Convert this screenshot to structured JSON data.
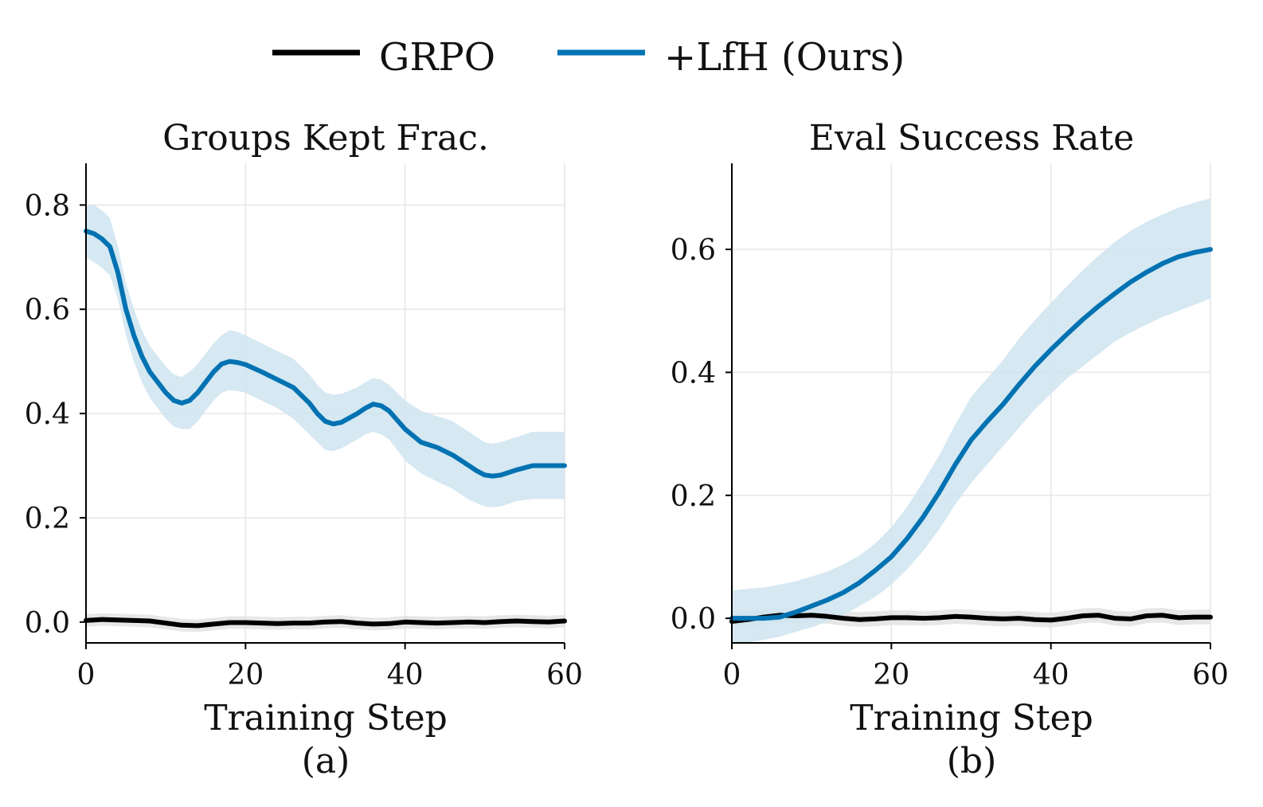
{
  "legend": {
    "items": [
      {
        "label": "GRPO",
        "color": "#000000"
      },
      {
        "label": "+LfH (Ours)",
        "color": "#0072B2"
      }
    ]
  },
  "colors": {
    "grpo": "#000000",
    "lfh": "#0072B2",
    "lfh_band": "#cfe4f0",
    "grpo_band": "#dddddd",
    "grid": "#ebebeb"
  },
  "chart_data": [
    {
      "type": "line",
      "title": "Groups Kept Frac.",
      "xlabel": "Training Step",
      "caption": "(a)",
      "ylabel": "",
      "xlim": [
        0,
        60
      ],
      "ylim": [
        -0.04,
        0.88
      ],
      "xticks": [
        0,
        20,
        40,
        60
      ],
      "xtick_labels": [
        "0",
        "20",
        "40",
        "60"
      ],
      "yticks": [
        0.0,
        0.2,
        0.4,
        0.6,
        0.8
      ],
      "ytick_labels": [
        "0.0",
        "0.2",
        "0.4",
        "0.6",
        "0.8"
      ],
      "grid": true,
      "series": [
        {
          "name": "GRPO",
          "color": "#000000",
          "x": [
            0,
            2,
            4,
            6,
            8,
            10,
            12,
            14,
            16,
            18,
            20,
            22,
            24,
            26,
            28,
            30,
            32,
            34,
            36,
            38,
            40,
            42,
            44,
            46,
            48,
            50,
            52,
            54,
            56,
            58,
            60
          ],
          "y": [
            0.003,
            0.005,
            0.004,
            0.003,
            0.002,
            -0.002,
            -0.006,
            -0.007,
            -0.004,
            -0.001,
            -0.001,
            -0.002,
            -0.003,
            -0.002,
            -0.002,
            0.0,
            0.001,
            -0.002,
            -0.004,
            -0.003,
            0.0,
            -0.001,
            -0.002,
            -0.001,
            0.0,
            -0.001,
            0.001,
            0.002,
            0.001,
            0.0,
            0.002
          ],
          "band": 0.012
        },
        {
          "name": "+LfH (Ours)",
          "color": "#0072B2",
          "x": [
            0,
            1,
            2,
            3,
            4,
            5,
            6,
            7,
            8,
            10,
            11,
            12,
            13,
            14,
            16,
            17,
            18,
            19,
            20,
            22,
            24,
            26,
            28,
            29,
            30,
            31,
            32,
            34,
            35,
            36,
            37,
            38,
            40,
            42,
            44,
            46,
            48,
            49,
            50,
            51,
            52,
            54,
            56,
            58,
            60
          ],
          "y": [
            0.75,
            0.745,
            0.735,
            0.72,
            0.67,
            0.6,
            0.55,
            0.51,
            0.48,
            0.44,
            0.425,
            0.42,
            0.425,
            0.44,
            0.48,
            0.495,
            0.5,
            0.498,
            0.494,
            0.48,
            0.465,
            0.45,
            0.42,
            0.4,
            0.385,
            0.38,
            0.383,
            0.4,
            0.41,
            0.418,
            0.415,
            0.405,
            0.37,
            0.345,
            0.335,
            0.32,
            0.3,
            0.29,
            0.282,
            0.28,
            0.282,
            0.292,
            0.3,
            0.3,
            0.3
          ],
          "band_lo": [
            0.7,
            0.69,
            0.68,
            0.665,
            0.62,
            0.55,
            0.5,
            0.46,
            0.43,
            0.39,
            0.375,
            0.37,
            0.37,
            0.385,
            0.425,
            0.44,
            0.445,
            0.443,
            0.44,
            0.425,
            0.41,
            0.39,
            0.36,
            0.345,
            0.33,
            0.328,
            0.333,
            0.35,
            0.36,
            0.365,
            0.36,
            0.35,
            0.31,
            0.285,
            0.27,
            0.255,
            0.235,
            0.228,
            0.222,
            0.22,
            0.222,
            0.232,
            0.236,
            0.236,
            0.236
          ],
          "band_hi": [
            0.8,
            0.8,
            0.79,
            0.775,
            0.72,
            0.65,
            0.6,
            0.56,
            0.53,
            0.49,
            0.475,
            0.47,
            0.48,
            0.495,
            0.535,
            0.55,
            0.56,
            0.557,
            0.55,
            0.535,
            0.52,
            0.505,
            0.475,
            0.455,
            0.44,
            0.436,
            0.438,
            0.45,
            0.46,
            0.468,
            0.465,
            0.455,
            0.425,
            0.405,
            0.395,
            0.385,
            0.365,
            0.355,
            0.345,
            0.342,
            0.345,
            0.355,
            0.365,
            0.365,
            0.365
          ]
        }
      ]
    },
    {
      "type": "line",
      "title": "Eval Success Rate",
      "xlabel": "Training Step",
      "caption": "(b)",
      "ylabel": "",
      "xlim": [
        0,
        60
      ],
      "ylim": [
        -0.04,
        0.74
      ],
      "xticks": [
        0,
        20,
        40,
        60
      ],
      "xtick_labels": [
        "0",
        "20",
        "40",
        "60"
      ],
      "yticks": [
        0.0,
        0.2,
        0.4,
        0.6
      ],
      "ytick_labels": [
        "0.0",
        "0.2",
        "0.4",
        "0.6"
      ],
      "grid": true,
      "series": [
        {
          "name": "GRPO",
          "color": "#000000",
          "x": [
            0,
            2,
            4,
            6,
            8,
            10,
            12,
            14,
            16,
            18,
            20,
            22,
            24,
            26,
            28,
            30,
            32,
            34,
            36,
            38,
            40,
            42,
            44,
            46,
            48,
            50,
            52,
            54,
            56,
            58,
            60
          ],
          "y": [
            -0.005,
            -0.002,
            0.002,
            0.005,
            0.004,
            0.005,
            0.003,
            0.0,
            -0.002,
            -0.001,
            0.001,
            0.001,
            0.0,
            0.001,
            0.003,
            0.002,
            0.0,
            -0.001,
            0.0,
            -0.002,
            -0.003,
            0.0,
            0.004,
            0.005,
            0.0,
            -0.001,
            0.004,
            0.005,
            0.001,
            0.002,
            0.002
          ],
          "band": 0.012
        },
        {
          "name": "+LfH (Ours)",
          "color": "#0072B2",
          "x": [
            0,
            2,
            4,
            6,
            8,
            10,
            12,
            14,
            16,
            18,
            20,
            22,
            24,
            26,
            28,
            30,
            32,
            34,
            36,
            38,
            40,
            42,
            44,
            46,
            48,
            50,
            52,
            54,
            56,
            58,
            60
          ],
          "y": [
            0.0,
            0.0,
            0.0,
            0.002,
            0.01,
            0.02,
            0.03,
            0.042,
            0.058,
            0.078,
            0.1,
            0.13,
            0.165,
            0.205,
            0.25,
            0.29,
            0.32,
            0.348,
            0.38,
            0.41,
            0.437,
            0.462,
            0.486,
            0.508,
            0.528,
            0.547,
            0.563,
            0.577,
            0.588,
            0.595,
            0.6
          ],
          "band_lo": [
            -0.04,
            -0.04,
            -0.035,
            -0.03,
            -0.022,
            -0.015,
            -0.005,
            0.005,
            0.02,
            0.035,
            0.055,
            0.08,
            0.11,
            0.145,
            0.185,
            0.22,
            0.25,
            0.28,
            0.31,
            0.34,
            0.365,
            0.39,
            0.41,
            0.43,
            0.45,
            0.465,
            0.478,
            0.49,
            0.5,
            0.51,
            0.52
          ],
          "band_hi": [
            0.045,
            0.048,
            0.05,
            0.055,
            0.06,
            0.068,
            0.076,
            0.088,
            0.102,
            0.122,
            0.148,
            0.182,
            0.222,
            0.265,
            0.315,
            0.36,
            0.39,
            0.42,
            0.455,
            0.485,
            0.513,
            0.54,
            0.566,
            0.59,
            0.612,
            0.63,
            0.645,
            0.657,
            0.668,
            0.676,
            0.683
          ]
        }
      ]
    }
  ]
}
